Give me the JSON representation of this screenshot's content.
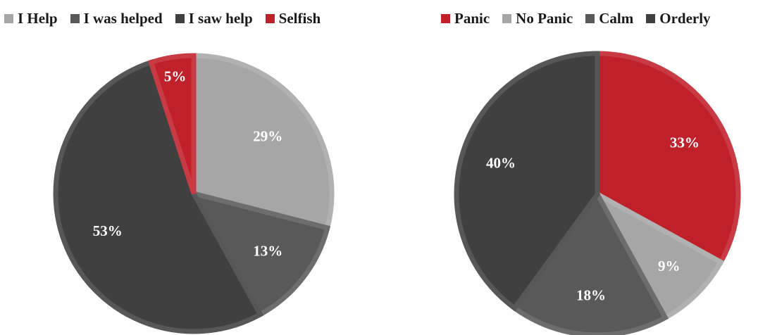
{
  "chart_data": [
    {
      "type": "pie",
      "legend_position": "top",
      "categories": [
        "I Help",
        "I was helped",
        "I saw help",
        "Selfish"
      ],
      "values": [
        29,
        13,
        53,
        5
      ],
      "labels": [
        "29%",
        "13%",
        "53%",
        "5%"
      ],
      "colors": [
        "#a6a6a6",
        "#595959",
        "#404040",
        "#c0202a"
      ]
    },
    {
      "type": "pie",
      "legend_position": "top",
      "categories": [
        "Panic",
        "No Panic",
        "Calm",
        "Orderly"
      ],
      "values": [
        33,
        9,
        18,
        40
      ],
      "labels": [
        "33%",
        "9%",
        "18%",
        "40%"
      ],
      "colors": [
        "#c0202a",
        "#a6a6a6",
        "#595959",
        "#404040"
      ]
    }
  ]
}
